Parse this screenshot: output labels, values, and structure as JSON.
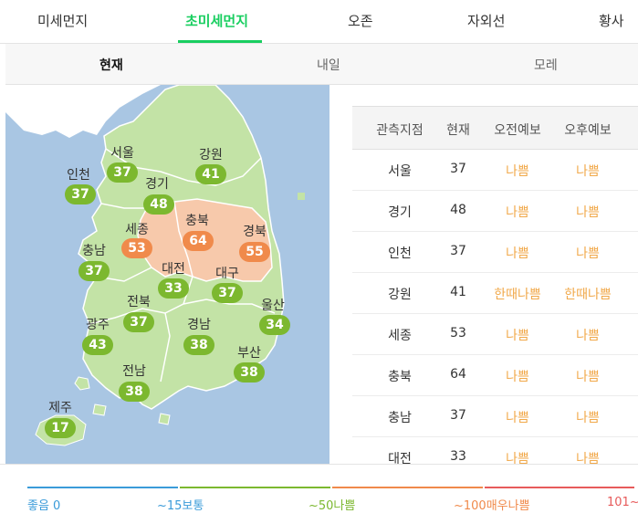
{
  "tabs": {
    "pm10": "미세먼지",
    "pm25": "초미세먼지",
    "ozone": "오존",
    "uv": "자외선",
    "yellow_dust": "황사"
  },
  "subtabs": {
    "now": "현재",
    "tomorrow": "내일",
    "day_after": "모레"
  },
  "colors": {
    "good": "#3a9bd9",
    "normal": "#7cb82f",
    "bad": "#f08a4b",
    "very_bad": "#e75b5b",
    "accent": "#19ce60"
  },
  "map": {
    "regions": [
      {
        "name": "서울",
        "value": "37",
        "level": "normal"
      },
      {
        "name": "강원",
        "value": "41",
        "level": "normal"
      },
      {
        "name": "인천",
        "value": "37",
        "level": "normal"
      },
      {
        "name": "경기",
        "value": "48",
        "level": "normal"
      },
      {
        "name": "세종",
        "value": "53",
        "level": "bad"
      },
      {
        "name": "충북",
        "value": "64",
        "level": "bad"
      },
      {
        "name": "경북",
        "value": "55",
        "level": "bad"
      },
      {
        "name": "충남",
        "value": "37",
        "level": "normal"
      },
      {
        "name": "대전",
        "value": "33",
        "level": "normal"
      },
      {
        "name": "대구",
        "value": "37",
        "level": "normal"
      },
      {
        "name": "울산",
        "value": "34",
        "level": "normal"
      },
      {
        "name": "전북",
        "value": "37",
        "level": "normal"
      },
      {
        "name": "광주",
        "value": "43",
        "level": "normal"
      },
      {
        "name": "경남",
        "value": "38",
        "level": "normal"
      },
      {
        "name": "부산",
        "value": "38",
        "level": "normal"
      },
      {
        "name": "전남",
        "value": "38",
        "level": "normal"
      },
      {
        "name": "제주",
        "value": "17",
        "level": "normal"
      }
    ]
  },
  "table": {
    "headers": [
      "관측지점",
      "현재",
      "오전예보",
      "오후예보"
    ],
    "rows": [
      {
        "station": "서울",
        "now": "37",
        "am": "나쁨",
        "pm": "나쁨"
      },
      {
        "station": "경기",
        "now": "48",
        "am": "나쁨",
        "pm": "나쁨"
      },
      {
        "station": "인천",
        "now": "37",
        "am": "나쁨",
        "pm": "나쁨"
      },
      {
        "station": "강원",
        "now": "41",
        "am": "한때나쁨",
        "pm": "한때나쁨"
      },
      {
        "station": "세종",
        "now": "53",
        "am": "나쁨",
        "pm": "나쁨"
      },
      {
        "station": "충북",
        "now": "64",
        "am": "나쁨",
        "pm": "나쁨"
      },
      {
        "station": "충남",
        "now": "37",
        "am": "나쁨",
        "pm": "나쁨"
      },
      {
        "station": "대전",
        "now": "33",
        "am": "나쁨",
        "pm": "나쁨"
      }
    ]
  },
  "legend": {
    "good": "좋음 0",
    "normal_start": "~15보통",
    "bad_start": "~50나쁨",
    "very_bad_start": "~100매우나쁨",
    "max": "101~"
  }
}
